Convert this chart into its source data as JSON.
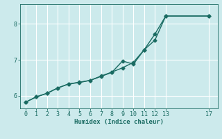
{
  "xlabel": "Humidex (Indice chaleur)",
  "ylabel": "",
  "background_color": "#cceaec",
  "line_color": "#1a6b62",
  "marker": "D",
  "marker_size": 2.5,
  "line_width": 1.0,
  "xlim": [
    -0.5,
    17.8
  ],
  "ylim": [
    5.65,
    8.55
  ],
  "xticks": [
    0,
    1,
    2,
    3,
    4,
    5,
    6,
    7,
    8,
    9,
    10,
    11,
    12,
    13,
    17
  ],
  "yticks": [
    6,
    7,
    8
  ],
  "grid_color": "#ffffff",
  "series1_x": [
    0,
    1,
    2,
    3,
    4,
    5,
    6,
    7,
    8,
    9,
    10,
    11,
    12,
    13,
    17
  ],
  "series1_y": [
    5.82,
    5.97,
    6.07,
    6.22,
    6.33,
    6.37,
    6.43,
    6.54,
    6.65,
    6.97,
    6.88,
    7.28,
    7.72,
    8.22,
    8.22
  ],
  "series2_x": [
    0,
    1,
    2,
    3,
    4,
    5,
    6,
    7,
    8,
    9,
    10,
    11,
    12,
    13,
    17
  ],
  "series2_y": [
    5.82,
    5.97,
    6.07,
    6.22,
    6.33,
    6.38,
    6.43,
    6.55,
    6.66,
    6.78,
    6.93,
    7.28,
    7.55,
    8.22,
    8.22
  ]
}
